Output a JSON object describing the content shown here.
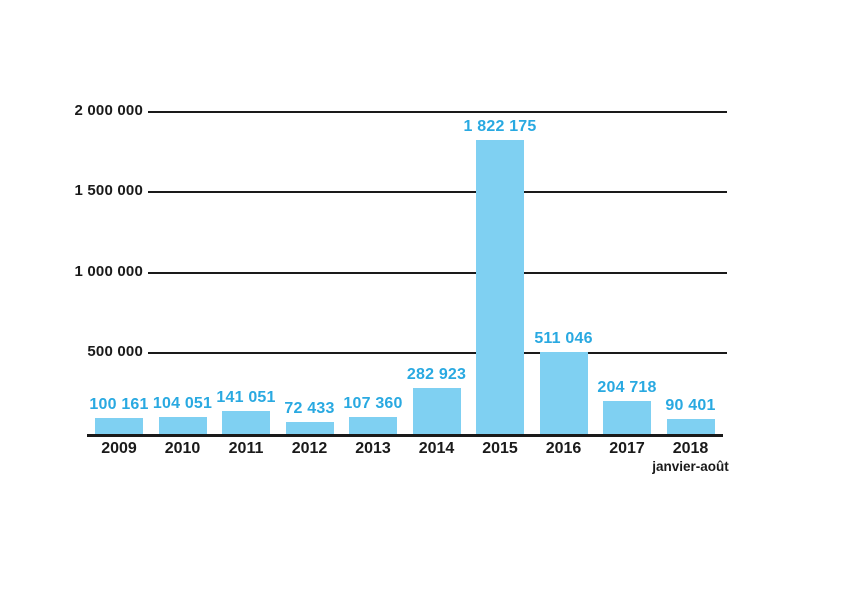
{
  "chart_data": {
    "type": "bar",
    "categories": [
      "2009",
      "2010",
      "2011",
      "2012",
      "2013",
      "2014",
      "2015",
      "2016",
      "2017",
      "2018"
    ],
    "category_sublabels": [
      "",
      "",
      "",
      "",
      "",
      "",
      "",
      "",
      "",
      "janvier-août"
    ],
    "values": [
      100161,
      104051,
      141051,
      72433,
      107360,
      282923,
      1822175,
      511046,
      204718,
      90401
    ],
    "value_labels": [
      "100 161",
      "104 051",
      "141 051",
      "72 433",
      "107 360",
      "282 923",
      "1 822 175",
      "511 046",
      "204 718",
      "90 401"
    ],
    "title": "",
    "xlabel": "",
    "ylabel": "",
    "ylim": [
      0,
      2000000
    ],
    "y_ticks": [
      {
        "value": 500000,
        "label": "500 000"
      },
      {
        "value": 1000000,
        "label": "1 000 000"
      },
      {
        "value": 1500000,
        "label": "1 500 000"
      },
      {
        "value": 2000000,
        "label": "2 000 000"
      }
    ],
    "grid": "horizontal-only",
    "legend": "none",
    "bars_drawn_over_gridlines": true,
    "colors": {
      "bar_fill": "#7FD0F2",
      "value_label": "#29A9E1",
      "axis_text": "#1A1A1A",
      "grid_line": "#1A1A1A",
      "background": "#FFFFFF"
    }
  }
}
